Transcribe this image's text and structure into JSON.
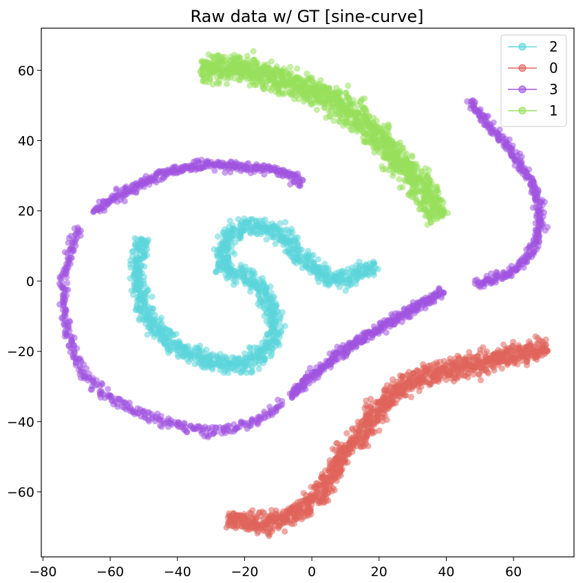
{
  "chart_data": {
    "type": "scatter",
    "title": "Raw data w/ GT [sine-curve]",
    "xlabel": "",
    "ylabel": "",
    "xlim": [
      -80.5,
      78
    ],
    "ylim": [
      -78.5,
      72
    ],
    "xticks": [
      -80,
      -60,
      -40,
      -20,
      0,
      20,
      40,
      60
    ],
    "yticks": [
      -60,
      -40,
      -20,
      0,
      20,
      40,
      60
    ],
    "xtick_labels": [
      "−80",
      "−60",
      "−40",
      "−20",
      "0",
      "20",
      "40",
      "60"
    ],
    "ytick_labels": [
      "−60",
      "−40",
      "−20",
      "0",
      "20",
      "40",
      "60"
    ],
    "grid": false,
    "legend_position": "top-right",
    "series": [
      {
        "name": "2",
        "color": "#5bd5db",
        "band_width": 2.6,
        "path": [
          [
            -50,
            12
          ],
          [
            -52,
            5
          ],
          [
            -51,
            -4
          ],
          [
            -47,
            -13
          ],
          [
            -40,
            -19
          ],
          [
            -30,
            -23
          ],
          [
            -22,
            -24
          ],
          [
            -14,
            -21
          ],
          [
            -11,
            -15
          ],
          [
            -12,
            -7
          ],
          [
            -17,
            0
          ],
          [
            -26,
            3
          ],
          [
            -27,
            10
          ],
          [
            -22,
            15
          ],
          [
            -15,
            16
          ],
          [
            -8,
            13
          ],
          [
            -3,
            7
          ],
          [
            2,
            2
          ],
          [
            7,
            0
          ],
          [
            13,
            2
          ],
          [
            19,
            4
          ]
        ]
      },
      {
        "name": "0",
        "color": "#e0645b",
        "band_width": 3.0,
        "path": [
          [
            -25,
            -68
          ],
          [
            -15,
            -69
          ],
          [
            -6,
            -67
          ],
          [
            0,
            -63
          ],
          [
            5,
            -57
          ],
          [
            8,
            -50
          ],
          [
            14,
            -44
          ],
          [
            20,
            -36
          ],
          [
            26,
            -30
          ],
          [
            36,
            -26
          ],
          [
            46,
            -24
          ],
          [
            56,
            -22
          ],
          [
            63,
            -20
          ],
          [
            70,
            -19
          ]
        ]
      },
      {
        "name": "3",
        "color": "#a053e0",
        "band_width": 1.3,
        "segments": [
          [
            [
              -3,
              28
            ],
            [
              -8,
              31
            ],
            [
              -15,
              32
            ],
            [
              -25,
              33
            ],
            [
              -33,
              33
            ],
            [
              -43,
              31
            ],
            [
              -50,
              28
            ],
            [
              -58,
              24
            ],
            [
              -65,
              20
            ]
          ],
          [
            [
              -69,
              15
            ],
            [
              -72,
              9
            ],
            [
              -74,
              -2
            ],
            [
              -73,
              -14
            ],
            [
              -68,
              -27
            ],
            [
              -60,
              -33
            ],
            [
              -50,
              -38
            ],
            [
              -40,
              -41
            ],
            [
              -30,
              -43
            ],
            [
              -20,
              -41
            ],
            [
              -13,
              -38
            ],
            [
              -9,
              -35
            ]
          ],
          [
            [
              -6,
              -33
            ],
            [
              0,
              -27
            ],
            [
              6,
              -22
            ],
            [
              14,
              -17
            ],
            [
              24,
              -11
            ],
            [
              32,
              -7
            ],
            [
              39,
              -3
            ]
          ],
          [
            [
              49,
              -1
            ],
            [
              55,
              1
            ],
            [
              61,
              3
            ],
            [
              65,
              8
            ],
            [
              68,
              14
            ],
            [
              68,
              20
            ],
            [
              66,
              27
            ],
            [
              62,
              33
            ],
            [
              57,
              40
            ],
            [
              51,
              46
            ],
            [
              47,
              51
            ]
          ]
        ]
      },
      {
        "name": "1",
        "color": "#98e05b",
        "band_width": 4.0,
        "path": [
          [
            -33,
            60
          ],
          [
            -25,
            61
          ],
          [
            -15,
            59
          ],
          [
            -5,
            56
          ],
          [
            5,
            52
          ],
          [
            15,
            46
          ],
          [
            22,
            39
          ],
          [
            28,
            32
          ],
          [
            34,
            25
          ],
          [
            38,
            18
          ]
        ]
      }
    ],
    "legend_order": [
      "2",
      "0",
      "3",
      "1"
    ]
  }
}
